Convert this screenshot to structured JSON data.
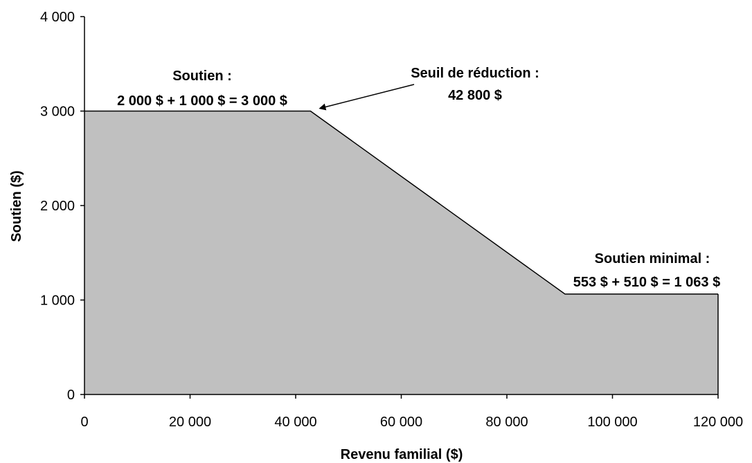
{
  "chart_data": {
    "type": "area",
    "title": "",
    "xlabel": "Revenu familial ($)",
    "ylabel": "Soutien ($)",
    "xlim": [
      0,
      120000
    ],
    "ylim": [
      0,
      4000
    ],
    "x_ticks": [
      0,
      20000,
      40000,
      60000,
      80000,
      100000,
      120000
    ],
    "x_tick_labels": [
      "0",
      "20 000",
      "40 000",
      "60 000",
      "80 000",
      "100 000",
      "120 000"
    ],
    "y_ticks": [
      0,
      1000,
      2000,
      3000,
      4000
    ],
    "y_tick_labels": [
      "0",
      "1 000",
      "2 000",
      "3 000",
      "4 000"
    ],
    "grid": false,
    "legend": "none",
    "fill_color": "#c0c0c0",
    "line_color": "#000000",
    "series": [
      {
        "x": [
          0,
          42800,
          91000,
          120000
        ],
        "values": [
          3000,
          3000,
          1063,
          1063
        ]
      }
    ],
    "annotations": [
      {
        "lines": [
          "Soutien :",
          "2 000 $ + 1 000 $ = 3 000 $"
        ]
      },
      {
        "lines": [
          "Seuil de réduction :",
          "42 800 $"
        ],
        "arrow_to": [
          42800,
          3000
        ]
      },
      {
        "lines": [
          "Soutien minimal :",
          "553 $ + 510 $ = 1 063 $"
        ]
      }
    ]
  }
}
